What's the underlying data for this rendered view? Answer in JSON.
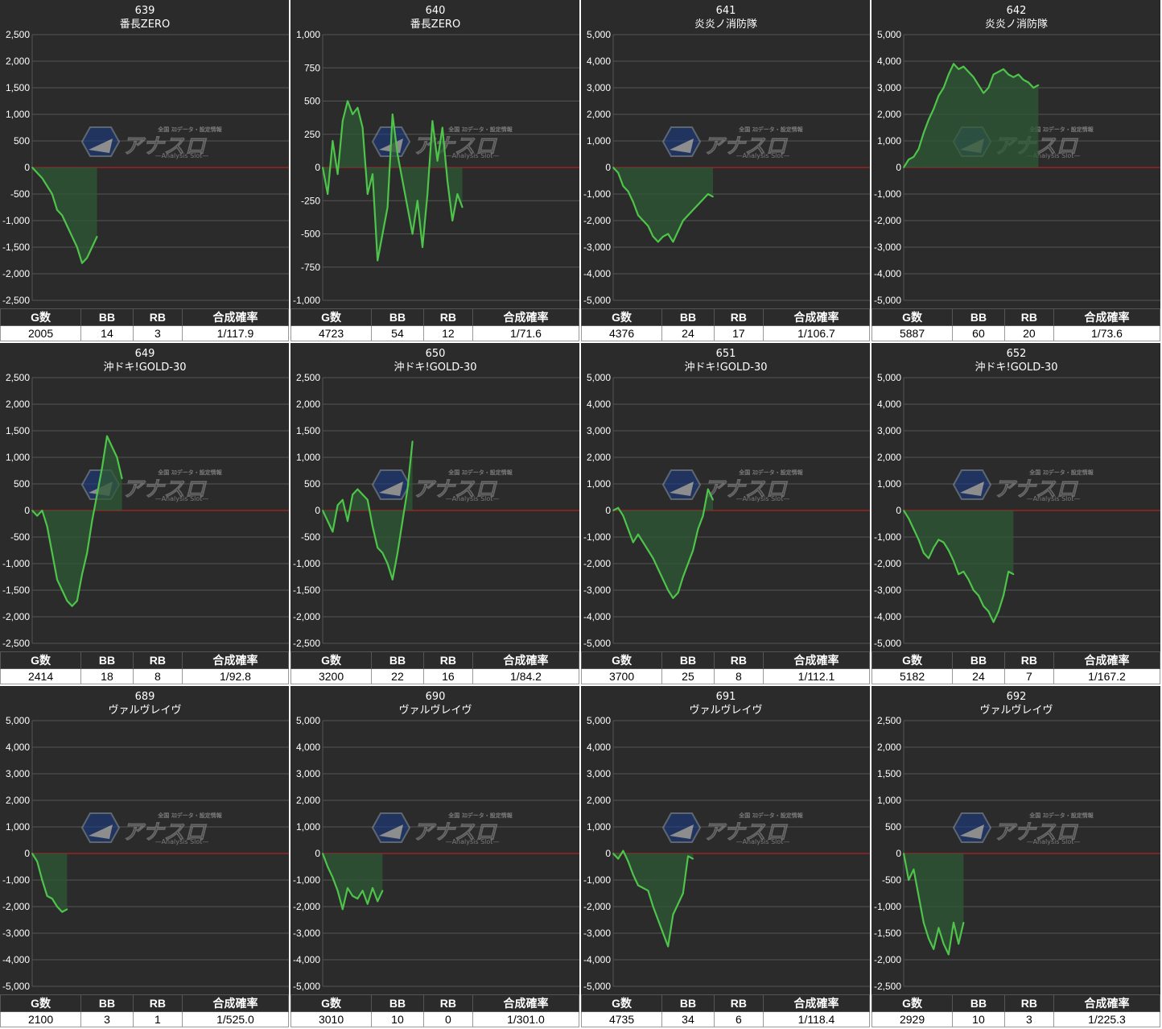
{
  "colors": {
    "panel_bg": "#2b2b2b",
    "line": "#4ec44a",
    "fill": "#2f5a35",
    "zero_line": "#cc2222",
    "grid": "#555555"
  },
  "stats_headers": {
    "g": "G数",
    "bb": "BB",
    "rb": "RB",
    "prob": "合成確率"
  },
  "watermark": {
    "brand": "アナスロ",
    "sub": "—Analysis Slot—",
    "tag": "全国 ｽﾛデータ・設定情報"
  },
  "chart_data": [
    {
      "type": "line",
      "title": "639",
      "subtitle": "番長ZERO",
      "ylim": [
        -2500,
        2500
      ],
      "yticks": [
        "2,500",
        "2,000",
        "1,500",
        "1,000",
        "500",
        "0",
        "-500",
        "-1,000",
        "-1,500",
        "-2,000",
        "-2,500"
      ],
      "y": [
        0,
        -100,
        -200,
        -350,
        -500,
        -800,
        -900,
        -1100,
        -1300,
        -1500,
        -1800,
        -1700,
        -1500,
        -1300
      ],
      "stats": {
        "g": "2005",
        "bb": "14",
        "rb": "3",
        "prob": "1/117.9"
      }
    },
    {
      "type": "line",
      "title": "640",
      "subtitle": "番長ZERO",
      "ylim": [
        -1000,
        1000
      ],
      "yticks": [
        "1,000",
        "750",
        "500",
        "250",
        "0",
        "-250",
        "-500",
        "-750",
        "-1,000"
      ],
      "y": [
        0,
        -200,
        200,
        -50,
        350,
        500,
        400,
        450,
        300,
        -200,
        -50,
        -700,
        -500,
        -300,
        400,
        100,
        -100,
        -300,
        -500,
        -250,
        -600,
        -200,
        350,
        50,
        300,
        -100,
        -400,
        -200,
        -300
      ],
      "stats": {
        "g": "4723",
        "bb": "54",
        "rb": "12",
        "prob": "1/71.6"
      }
    },
    {
      "type": "line",
      "title": "641",
      "subtitle": "炎炎ノ消防隊",
      "ylim": [
        -5000,
        5000
      ],
      "yticks": [
        "5,000",
        "4,000",
        "3,000",
        "2,000",
        "1,000",
        "0",
        "-1,000",
        "-2,000",
        "-3,000",
        "-4,000",
        "-5,000"
      ],
      "y": [
        0,
        -200,
        -700,
        -900,
        -1300,
        -1800,
        -2000,
        -2200,
        -2600,
        -2800,
        -2600,
        -2500,
        -2800,
        -2400,
        -2000,
        -1800,
        -1600,
        -1400,
        -1200,
        -1000,
        -1100
      ],
      "stats": {
        "g": "4376",
        "bb": "24",
        "rb": "17",
        "prob": "1/106.7"
      }
    },
    {
      "type": "line",
      "title": "642",
      "subtitle": "炎炎ノ消防隊",
      "ylim": [
        -5000,
        5000
      ],
      "yticks": [
        "5,000",
        "4,000",
        "3,000",
        "2,000",
        "1,000",
        "0",
        "-1,000",
        "-2,000",
        "-3,000",
        "-4,000",
        "-5,000"
      ],
      "y": [
        0,
        300,
        400,
        700,
        1300,
        1800,
        2200,
        2700,
        3000,
        3500,
        3900,
        3700,
        3800,
        3600,
        3400,
        3100,
        2800,
        3000,
        3500,
        3600,
        3700,
        3500,
        3400,
        3500,
        3300,
        3200,
        3000,
        3100
      ],
      "stats": {
        "g": "5887",
        "bb": "60",
        "rb": "20",
        "prob": "1/73.6"
      }
    },
    {
      "type": "line",
      "title": "649",
      "subtitle": "沖ドキ!GOLD-30",
      "ylim": [
        -2500,
        2500
      ],
      "yticks": [
        "2,500",
        "2,000",
        "1,500",
        "1,000",
        "500",
        "0",
        "-500",
        "-1,000",
        "-1,500",
        "-2,000",
        "-2,500"
      ],
      "y": [
        0,
        -100,
        0,
        -300,
        -800,
        -1300,
        -1500,
        -1700,
        -1800,
        -1700,
        -1200,
        -800,
        -200,
        300,
        800,
        1400,
        1200,
        1000,
        600
      ],
      "stats": {
        "g": "2414",
        "bb": "18",
        "rb": "8",
        "prob": "1/92.8"
      }
    },
    {
      "type": "line",
      "title": "650",
      "subtitle": "沖ドキ!GOLD-30",
      "ylim": [
        -2500,
        2500
      ],
      "yticks": [
        "2,500",
        "2,000",
        "1,500",
        "1,000",
        "500",
        "0",
        "-500",
        "-1,000",
        "-1,500",
        "-2,000",
        "-2,500"
      ],
      "y": [
        0,
        -200,
        -400,
        100,
        200,
        -200,
        300,
        400,
        300,
        200,
        -300,
        -700,
        -800,
        -1000,
        -1300,
        -800,
        -200,
        400,
        1300
      ],
      "stats": {
        "g": "3200",
        "bb": "22",
        "rb": "16",
        "prob": "1/84.2"
      }
    },
    {
      "type": "line",
      "title": "651",
      "subtitle": "沖ドキ!GOLD-30",
      "ylim": [
        -5000,
        5000
      ],
      "yticks": [
        "5,000",
        "4,000",
        "3,000",
        "2,000",
        "1,000",
        "0",
        "-1,000",
        "-2,000",
        "-3,000",
        "-4,000",
        "-5,000"
      ],
      "y": [
        0,
        100,
        -200,
        -700,
        -1200,
        -900,
        -1200,
        -1500,
        -1800,
        -2200,
        -2600,
        -3000,
        -3300,
        -3100,
        -2500,
        -2000,
        -1500,
        -700,
        -200,
        800,
        400
      ],
      "stats": {
        "g": "3700",
        "bb": "25",
        "rb": "8",
        "prob": "1/112.1"
      }
    },
    {
      "type": "line",
      "title": "652",
      "subtitle": "沖ドキ!GOLD-30",
      "ylim": [
        -5000,
        5000
      ],
      "yticks": [
        "5,000",
        "4,000",
        "3,000",
        "2,000",
        "1,000",
        "0",
        "-1,000",
        "-2,000",
        "-3,000",
        "-4,000",
        "-5,000"
      ],
      "y": [
        0,
        -300,
        -700,
        -1100,
        -1600,
        -1800,
        -1400,
        -1100,
        -1200,
        -1500,
        -1900,
        -2400,
        -2300,
        -2600,
        -3000,
        -3200,
        -3600,
        -3800,
        -4200,
        -3800,
        -3200,
        -2300,
        -2400
      ],
      "stats": {
        "g": "5182",
        "bb": "24",
        "rb": "7",
        "prob": "1/167.2"
      }
    },
    {
      "type": "line",
      "title": "689",
      "subtitle": "ヴァルヴレイヴ",
      "ylim": [
        -5000,
        5000
      ],
      "yticks": [
        "5,000",
        "4,000",
        "3,000",
        "2,000",
        "1,000",
        "0",
        "-1,000",
        "-2,000",
        "-3,000",
        "-4,000",
        "-5,000"
      ],
      "y": [
        0,
        -300,
        -1000,
        -1600,
        -1700,
        -2000,
        -2200,
        -2100
      ],
      "stats": {
        "g": "2100",
        "bb": "3",
        "rb": "1",
        "prob": "1/525.0"
      }
    },
    {
      "type": "line",
      "title": "690",
      "subtitle": "ヴァルヴレイヴ",
      "ylim": [
        -5000,
        5000
      ],
      "yticks": [
        "5,000",
        "4,000",
        "3,000",
        "2,000",
        "1,000",
        "0",
        "-1,000",
        "-2,000",
        "-3,000",
        "-4,000",
        "-5,000"
      ],
      "y": [
        0,
        -500,
        -900,
        -1400,
        -2100,
        -1300,
        -1600,
        -1700,
        -1400,
        -1900,
        -1300,
        -1800,
        -1400
      ],
      "stats": {
        "g": "3010",
        "bb": "10",
        "rb": "0",
        "prob": "1/301.0"
      }
    },
    {
      "type": "line",
      "title": "691",
      "subtitle": "ヴァルヴレイヴ",
      "ylim": [
        -5000,
        5000
      ],
      "yticks": [
        "5,000",
        "4,000",
        "3,000",
        "2,000",
        "1,000",
        "0",
        "-1,000",
        "-2,000",
        "-3,000",
        "-4,000",
        "-5,000"
      ],
      "y": [
        0,
        -200,
        100,
        -300,
        -800,
        -1200,
        -1300,
        -1400,
        -2000,
        -2500,
        -3000,
        -3500,
        -2300,
        -1900,
        -1500,
        -100,
        -200
      ],
      "stats": {
        "g": "4735",
        "bb": "34",
        "rb": "6",
        "prob": "1/118.4"
      }
    },
    {
      "type": "line",
      "title": "692",
      "subtitle": "ヴァルヴレイヴ",
      "ylim": [
        -2500,
        2500
      ],
      "yticks": [
        "2,500",
        "2,000",
        "1,500",
        "1,000",
        "500",
        "0",
        "-500",
        "-1,000",
        "-1,500",
        "-2,000",
        "-2,500"
      ],
      "y": [
        0,
        -500,
        -300,
        -800,
        -1300,
        -1600,
        -1800,
        -1400,
        -1700,
        -1900,
        -1300,
        -1700,
        -1300
      ],
      "stats": {
        "g": "2929",
        "bb": "10",
        "rb": "3",
        "prob": "1/225.3"
      }
    }
  ]
}
